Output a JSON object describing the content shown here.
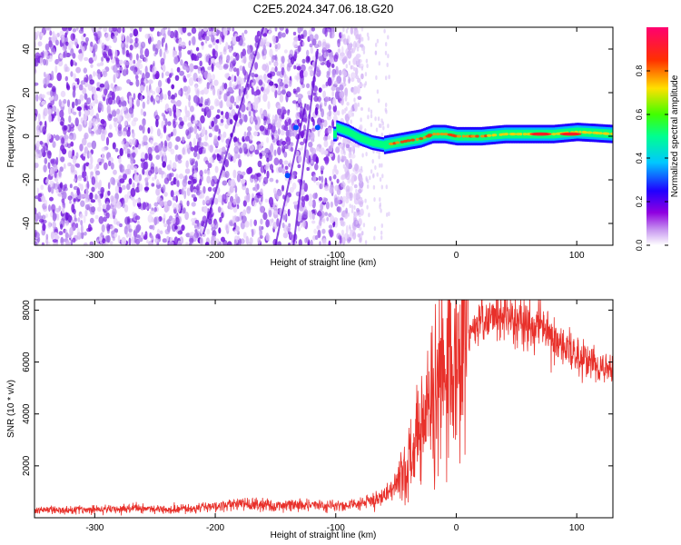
{
  "title": "C2E5.2024.347.06.18.G20",
  "chart_data": [
    {
      "type": "heatmap",
      "xlabel": "Height of straight line (km)",
      "ylabel": "Frequency (Hz)",
      "xlim": [
        -350,
        130
      ],
      "ylim": [
        -50,
        50
      ],
      "xticks": [
        -300,
        -200,
        -100,
        0,
        100
      ],
      "yticks": [
        -40,
        -20,
        0,
        20,
        40
      ],
      "colorbar": {
        "label": "Normalized spectral amplitude",
        "range": [
          0,
          1
        ],
        "ticks": [
          "0.0",
          "0.2",
          "0.4",
          "0.6",
          "0.8"
        ],
        "colors": [
          "#ffffff",
          "#9000e0",
          "#0000ff",
          "#00c8ff",
          "#00ff60",
          "#80ff00",
          "#ffe000",
          "#ff3000",
          "#ff0060"
        ]
      },
      "ridge": {
        "x": [
          -100,
          -90,
          -80,
          -70,
          -60,
          -50,
          -40,
          -30,
          -20,
          -10,
          0,
          20,
          40,
          60,
          80,
          100,
          130
        ],
        "y": [
          4,
          2,
          -1,
          -3,
          -4,
          -3,
          -2,
          -1,
          1,
          1,
          0,
          0,
          1,
          1,
          1,
          2,
          1
        ]
      }
    },
    {
      "type": "line",
      "xlabel": "Height of straight line (km)",
      "ylabel": "SNR (10 * v/v)",
      "xlim": [
        -350,
        130
      ],
      "ylim": [
        0,
        8400
      ],
      "xticks": [
        -300,
        -200,
        -100,
        0,
        100
      ],
      "yticks": [
        2000,
        4000,
        6000,
        8000
      ],
      "color": "#e8302a",
      "series": [
        {
          "x": [
            -350,
            -320,
            -300,
            -280,
            -260,
            -240,
            -220,
            -200,
            -180,
            -160,
            -150,
            -140,
            -120,
            -100,
            -90,
            -80,
            -70,
            -60,
            -50,
            -45,
            -40,
            -35,
            -30,
            -25,
            -20,
            -15,
            -10,
            -5,
            0,
            10,
            20,
            30,
            40,
            50,
            60,
            70,
            80,
            90,
            100,
            110,
            120,
            130
          ],
          "y": [
            300,
            300,
            320,
            330,
            380,
            330,
            360,
            450,
            520,
            500,
            450,
            520,
            500,
            450,
            480,
            550,
            650,
            800,
            1200,
            1600,
            2200,
            2800,
            3500,
            4200,
            4800,
            5200,
            5600,
            6200,
            6800,
            7200,
            7500,
            7700,
            7700,
            7600,
            7400,
            7400,
            7000,
            6600,
            6300,
            6000,
            5800,
            5700
          ]
        }
      ]
    }
  ]
}
